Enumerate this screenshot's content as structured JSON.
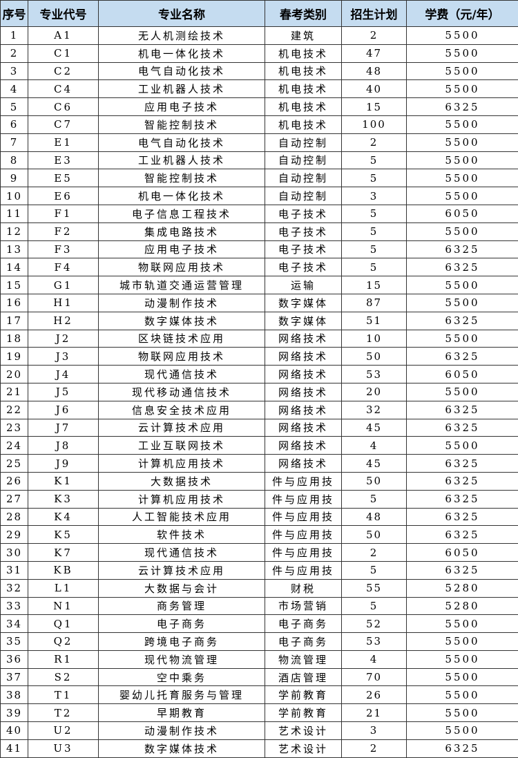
{
  "table": {
    "header": [
      "序号",
      "专业代号",
      "专业名称",
      "春考类别",
      "招生计划",
      "学费（元/年）"
    ],
    "rows": [
      [
        1,
        "A1",
        "无人机测绘技术",
        "建筑",
        2,
        5500
      ],
      [
        2,
        "C1",
        "机电一体化技术",
        "机电技术",
        47,
        5500
      ],
      [
        3,
        "C2",
        "电气自动化技术",
        "机电技术",
        48,
        5500
      ],
      [
        4,
        "C4",
        "工业机器人技术",
        "机电技术",
        40,
        5500
      ],
      [
        5,
        "C6",
        "应用电子技术",
        "机电技术",
        15,
        6325
      ],
      [
        6,
        "C7",
        "智能控制技术",
        "机电技术",
        100,
        5500
      ],
      [
        7,
        "E1",
        "电气自动化技术",
        "自动控制",
        2,
        5500
      ],
      [
        8,
        "E3",
        "工业机器人技术",
        "自动控制",
        5,
        5500
      ],
      [
        9,
        "E5",
        "智能控制技术",
        "自动控制",
        5,
        5500
      ],
      [
        10,
        "E6",
        "机电一体化技术",
        "自动控制",
        3,
        5500
      ],
      [
        11,
        "F1",
        "电子信息工程技术",
        "电子技术",
        5,
        6050
      ],
      [
        12,
        "F2",
        "集成电路技术",
        "电子技术",
        5,
        5500
      ],
      [
        13,
        "F3",
        "应用电子技术",
        "电子技术",
        5,
        6325
      ],
      [
        14,
        "F4",
        "物联网应用技术",
        "电子技术",
        5,
        6325
      ],
      [
        15,
        "G1",
        "城市轨道交通运营管理",
        "运输",
        15,
        5500
      ],
      [
        16,
        "H1",
        "动漫制作技术",
        "数字媒体",
        87,
        5500
      ],
      [
        17,
        "H2",
        "数字媒体技术",
        "数字媒体",
        51,
        6325
      ],
      [
        18,
        "J2",
        "区块链技术应用",
        "网络技术",
        10,
        5500
      ],
      [
        19,
        "J3",
        "物联网应用技术",
        "网络技术",
        50,
        6325
      ],
      [
        20,
        "J4",
        "现代通信技术",
        "网络技术",
        53,
        6050
      ],
      [
        21,
        "J5",
        "现代移动通信技术",
        "网络技术",
        20,
        5500
      ],
      [
        22,
        "J6",
        "信息安全技术应用",
        "网络技术",
        32,
        6325
      ],
      [
        23,
        "J7",
        "云计算技术应用",
        "网络技术",
        45,
        6325
      ],
      [
        24,
        "J8",
        "工业互联网技术",
        "网络技术",
        4,
        5500
      ],
      [
        25,
        "J9",
        "计算机应用技术",
        "网络技术",
        45,
        6325
      ],
      [
        26,
        "K1",
        "大数据技术",
        "件与应用技",
        50,
        6325
      ],
      [
        27,
        "K3",
        "计算机应用技术",
        "件与应用技",
        5,
        6325
      ],
      [
        28,
        "K4",
        "人工智能技术应用",
        "件与应用技",
        48,
        6325
      ],
      [
        29,
        "K5",
        "软件技术",
        "件与应用技",
        50,
        6325
      ],
      [
        30,
        "K7",
        "现代通信技术",
        "件与应用技",
        2,
        6050
      ],
      [
        31,
        "KB",
        "云计算技术应用",
        "件与应用技",
        5,
        6325
      ],
      [
        32,
        "L1",
        "大数据与会计",
        "财税",
        55,
        5280
      ],
      [
        33,
        "N1",
        "商务管理",
        "市场营销",
        5,
        5280
      ],
      [
        34,
        "Q1",
        "电子商务",
        "电子商务",
        52,
        5500
      ],
      [
        35,
        "Q2",
        "跨境电子商务",
        "电子商务",
        53,
        5500
      ],
      [
        36,
        "R1",
        "现代物流管理",
        "物流管理",
        4,
        5500
      ],
      [
        37,
        "S2",
        "空中乘务",
        "酒店管理",
        70,
        5500
      ],
      [
        38,
        "T1",
        "婴幼儿托育服务与管理",
        "学前教育",
        26,
        5500
      ],
      [
        39,
        "T2",
        "早期教育",
        "学前教育",
        21,
        5500
      ],
      [
        40,
        "U2",
        "动漫制作技术",
        "艺术设计",
        3,
        5500
      ],
      [
        41,
        "U3",
        "数字媒体技术",
        "艺术设计",
        2,
        6325
      ]
    ]
  }
}
